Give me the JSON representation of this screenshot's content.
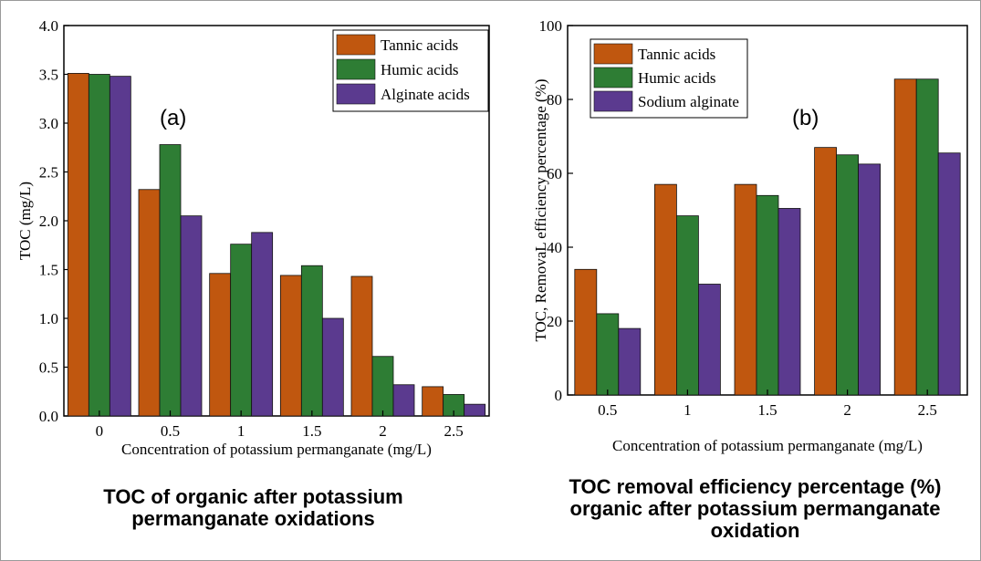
{
  "chart_data": [
    {
      "id": "a",
      "type": "bar",
      "panel_label": "(a)",
      "xlabel": "Concentration of potassium permanganate (mg/L)",
      "ylabel": "TOC (mg/L)",
      "categories": [
        "0",
        "0.5",
        "1",
        "1.5",
        "2",
        "2.5"
      ],
      "ylim": [
        0,
        4.0
      ],
      "yticks": [
        "0.0",
        "0.5",
        "1.0",
        "1.5",
        "2.0",
        "2.5",
        "3.0",
        "3.5",
        "4.0"
      ],
      "legend_position": "top-right",
      "grid": false,
      "series": [
        {
          "name": "Tannic acids",
          "color": "#c0570f",
          "values": [
            3.51,
            2.32,
            1.46,
            1.44,
            1.43,
            0.3
          ]
        },
        {
          "name": "Humic acids",
          "color": "#2e7d34",
          "values": [
            3.5,
            2.78,
            1.76,
            1.54,
            0.61,
            0.22
          ]
        },
        {
          "name": "Alginate acids",
          "color": "#5b3a8f",
          "values": [
            3.48,
            2.05,
            1.88,
            1.0,
            0.32,
            0.12
          ]
        }
      ]
    },
    {
      "id": "b",
      "type": "bar",
      "panel_label": "(b)",
      "xlabel": "Concentration of potassium permanganate (mg/L)",
      "ylabel": "TOC,  RemovaL efficiency percentage (%)",
      "categories": [
        "0.5",
        "1",
        "1.5",
        "2",
        "2.5"
      ],
      "ylim": [
        0,
        100
      ],
      "yticks": [
        "0",
        "20",
        "40",
        "60",
        "80",
        "100"
      ],
      "legend_position": "top-left",
      "grid": false,
      "series": [
        {
          "name": "Tannic acids",
          "color": "#c0570f",
          "values": [
            34,
            57,
            57,
            67,
            85.5
          ]
        },
        {
          "name": "Humic acids",
          "color": "#2e7d34",
          "values": [
            22,
            48.5,
            54,
            65,
            85.5
          ]
        },
        {
          "name": "Sodium alginate",
          "color": "#5b3a8f",
          "values": [
            18,
            30,
            50.5,
            62.5,
            65.5
          ]
        }
      ]
    }
  ],
  "captions": {
    "a": "TOC  of organic after potassium permanganate oxidations",
    "b": "TOC removal efficiency percentage (%) organic after potassium permanganate oxidation"
  }
}
